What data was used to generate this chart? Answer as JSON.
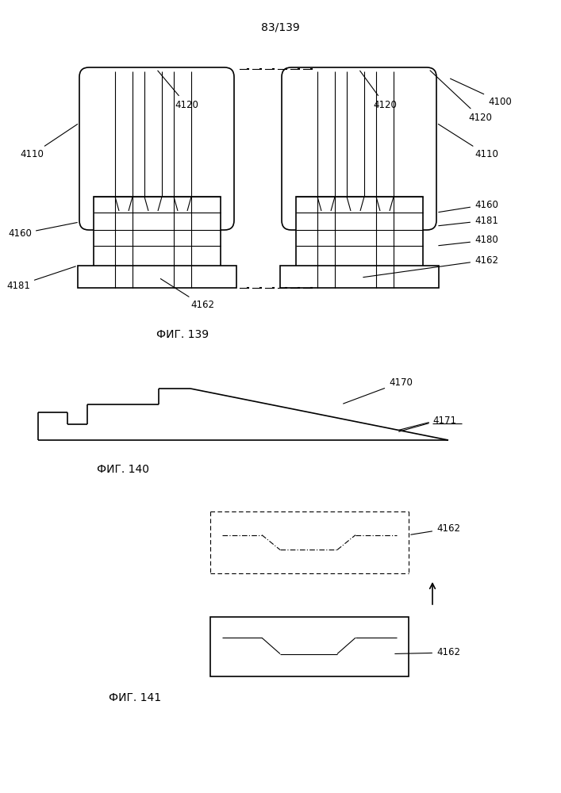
{
  "page_label": "83/139",
  "fig139_label": "ФИГ. 139",
  "fig140_label": "ФИГ. 140",
  "fig141_label": "ФИГ. 141",
  "bg_color": "#ffffff",
  "line_color": "#000000",
  "lw": 1.2,
  "thin_lw": 0.8,
  "fs": 8.5,
  "fs_title": 10
}
